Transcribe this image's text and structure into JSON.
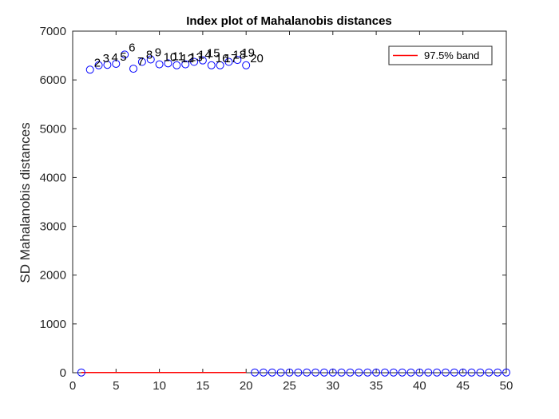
{
  "chart_data": {
    "type": "scatter",
    "title": "Index plot of Mahalanobis distances",
    "xlabel": "",
    "ylabel": "SD Mahalanobis distances",
    "xlim": [
      0,
      50
    ],
    "ylim": [
      0,
      7000
    ],
    "xticks": [
      0,
      5,
      10,
      15,
      20,
      25,
      30,
      35,
      40,
      45,
      50
    ],
    "yticks": [
      0,
      1000,
      2000,
      3000,
      4000,
      5000,
      6000,
      7000
    ],
    "grid": false,
    "legend": {
      "position": "top-right",
      "entries": [
        {
          "label": "97.5% band",
          "color": "#ff0000",
          "style": "line"
        }
      ]
    },
    "series": [
      {
        "marker": "circle",
        "color": "#0000ff",
        "x": [
          1,
          2,
          3,
          4,
          5,
          6,
          7,
          8,
          9,
          10,
          11,
          12,
          13,
          14,
          15,
          16,
          17,
          18,
          19,
          20,
          21,
          22,
          23,
          24,
          25,
          26,
          27,
          28,
          29,
          30,
          31,
          32,
          33,
          34,
          35,
          36,
          37,
          38,
          39,
          40,
          41,
          42,
          43,
          44,
          45,
          46,
          47,
          48,
          49,
          50
        ],
        "y": [
          5,
          6210,
          6300,
          6310,
          6330,
          6520,
          6230,
          6370,
          6420,
          6320,
          6340,
          6300,
          6320,
          6370,
          6400,
          6300,
          6300,
          6370,
          6410,
          6300,
          5,
          5,
          5,
          5,
          5,
          5,
          5,
          5,
          5,
          5,
          5,
          5,
          5,
          5,
          5,
          5,
          5,
          5,
          5,
          5,
          5,
          5,
          5,
          5,
          5,
          5,
          5,
          5,
          5,
          5
        ]
      }
    ],
    "point_labels": [
      {
        "x": 2,
        "y": 6210,
        "text": "2"
      },
      {
        "x": 3,
        "y": 6300,
        "text": "3"
      },
      {
        "x": 4,
        "y": 6310,
        "text": "4"
      },
      {
        "x": 5,
        "y": 6330,
        "text": "5"
      },
      {
        "x": 6,
        "y": 6520,
        "text": "6"
      },
      {
        "x": 7,
        "y": 6230,
        "text": "7"
      },
      {
        "x": 8,
        "y": 6370,
        "text": "8"
      },
      {
        "x": 9,
        "y": 6420,
        "text": "9"
      },
      {
        "x": 10,
        "y": 6320,
        "text": "10"
      },
      {
        "x": 11,
        "y": 6340,
        "text": "11"
      },
      {
        "x": 12,
        "y": 6300,
        "text": "12"
      },
      {
        "x": 13,
        "y": 6320,
        "text": "13"
      },
      {
        "x": 14,
        "y": 6370,
        "text": "14"
      },
      {
        "x": 15,
        "y": 6400,
        "text": "15"
      },
      {
        "x": 16,
        "y": 6300,
        "text": "16"
      },
      {
        "x": 17,
        "y": 6300,
        "text": "17"
      },
      {
        "x": 18,
        "y": 6370,
        "text": "18"
      },
      {
        "x": 19,
        "y": 6410,
        "text": "19"
      },
      {
        "x": 20,
        "y": 6300,
        "text": "20"
      }
    ],
    "band_line": {
      "x": [
        1,
        20
      ],
      "y": [
        5,
        5
      ],
      "color": "#ff0000"
    }
  }
}
